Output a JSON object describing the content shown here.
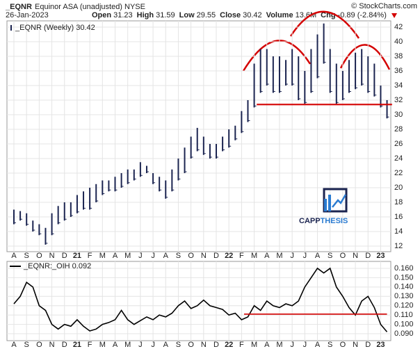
{
  "chart_data": [
    {
      "type": "ohlc",
      "title": "_EQNR",
      "subtitle": "Equinor ASA (unadjusted) NYSE",
      "date": "26-Jan-2023",
      "quote": [
        {
          "label": "Open",
          "text": "31.23"
        },
        {
          "label": "High",
          "text": "31.59"
        },
        {
          "label": "Low",
          "text": "29.55"
        },
        {
          "label": "Close",
          "text": "30.42"
        },
        {
          "label": "Volume",
          "text": "13.6M"
        },
        {
          "label": "Chg",
          "text": "-0.89 (-2.84%)"
        }
      ],
      "credit": "© StockCharts.com",
      "logo": [
        "CAPP",
        "THESIS"
      ],
      "series": [
        {
          "name": "_EQNR (Weekly) 30.42",
          "color": "#1b2450",
          "low": [
            15,
            15.5,
            14.8,
            14,
            13.5,
            12.2,
            13.5,
            15,
            15.5,
            16,
            16.5,
            17,
            17,
            18,
            19,
            19.5,
            19.5,
            20,
            20.5,
            21,
            21.5,
            22,
            20.5,
            19.5,
            18.5,
            19.5,
            21,
            22,
            24,
            25,
            24.5,
            24,
            24,
            25,
            25.5,
            26.5,
            27.5,
            29,
            31,
            33,
            34,
            33,
            33,
            34,
            34,
            32,
            31.5,
            33,
            35,
            37,
            33,
            31.5,
            32,
            33,
            33.5,
            34,
            33,
            32.5,
            31,
            29.5
          ],
          "high": [
            17,
            16.8,
            16.5,
            15.5,
            15,
            14.5,
            16.5,
            17.5,
            18,
            18,
            19,
            19.5,
            20,
            20.5,
            21,
            21,
            21.5,
            22,
            22.5,
            22.5,
            23.5,
            23,
            22,
            21.5,
            21,
            22.5,
            24,
            25.5,
            27,
            28.2,
            27,
            26,
            26,
            27,
            28,
            28.5,
            30.5,
            32,
            37,
            39,
            39,
            38,
            38,
            37.5,
            39,
            38,
            36,
            39,
            41,
            42.5,
            39,
            37,
            36,
            37.5,
            38.5,
            39,
            38,
            37,
            34,
            32
          ]
        }
      ],
      "x": [
        0,
        0.5,
        1,
        1.5,
        2,
        2.5,
        3,
        3.5,
        4,
        4.5,
        5,
        5.5,
        6,
        6.5,
        7,
        7.5,
        8,
        8.5,
        9,
        9.5,
        10,
        10.5,
        11,
        11.5,
        12,
        12.5,
        13,
        13.5,
        14,
        14.5,
        15,
        15.5,
        16,
        16.5,
        17,
        17.5,
        18,
        18.5,
        19,
        19.5,
        20,
        20.5,
        21,
        21.5,
        22,
        22.5,
        23,
        23.5,
        24,
        24.5,
        25,
        25.5,
        26,
        26.5,
        27,
        27.5,
        28,
        28.5,
        29,
        29.5
      ],
      "xlim": [
        -0.55,
        29.8
      ],
      "xticks": [
        {
          "value": 0,
          "label": "A"
        },
        {
          "value": 1,
          "label": "S"
        },
        {
          "value": 2,
          "label": "O"
        },
        {
          "value": 3,
          "label": "N"
        },
        {
          "value": 4,
          "label": "D"
        },
        {
          "value": 5,
          "label": "21"
        },
        {
          "value": 6,
          "label": "F"
        },
        {
          "value": 7,
          "label": "M"
        },
        {
          "value": 8,
          "label": "A"
        },
        {
          "value": 9,
          "label": "M"
        },
        {
          "value": 10,
          "label": "J"
        },
        {
          "value": 11,
          "label": "J"
        },
        {
          "value": 12,
          "label": "A"
        },
        {
          "value": 13,
          "label": "S"
        },
        {
          "value": 14,
          "label": "O"
        },
        {
          "value": 15,
          "label": "N"
        },
        {
          "value": 16,
          "label": "D"
        },
        {
          "value": 17,
          "label": "22"
        },
        {
          "value": 18,
          "label": "F"
        },
        {
          "value": 19,
          "label": "M"
        },
        {
          "value": 20,
          "label": "A"
        },
        {
          "value": 21,
          "label": "M"
        },
        {
          "value": 22,
          "label": "J"
        },
        {
          "value": 23,
          "label": "J"
        },
        {
          "value": 24,
          "label": "A"
        },
        {
          "value": 25,
          "label": "S"
        },
        {
          "value": 26,
          "label": "O"
        },
        {
          "value": 27,
          "label": "N"
        },
        {
          "value": 28,
          "label": "D"
        },
        {
          "value": 29,
          "label": "23"
        }
      ],
      "ylim": [
        11.24,
        42.86
      ],
      "yticks": [
        12,
        14,
        16,
        18,
        20,
        22,
        24,
        26,
        28,
        30,
        32,
        34,
        36,
        38,
        40,
        42
      ],
      "grid": true,
      "hline": {
        "value": 31.4,
        "x": [
          19.2,
          29.9
        ],
        "color": "#d40000"
      }
    },
    {
      "type": "line",
      "series": [
        {
          "name": "_EQNR:_OIH 0.092",
          "color": "#000000",
          "values": [
            0.122,
            0.13,
            0.145,
            0.14,
            0.12,
            0.115,
            0.1,
            0.095,
            0.1,
            0.098,
            0.105,
            0.098,
            0.093,
            0.095,
            0.1,
            0.102,
            0.105,
            0.115,
            0.105,
            0.1,
            0.104,
            0.108,
            0.105,
            0.11,
            0.108,
            0.112,
            0.12,
            0.125,
            0.117,
            0.12,
            0.126,
            0.12,
            0.118,
            0.116,
            0.11,
            0.112,
            0.105,
            0.108,
            0.12,
            0.115,
            0.125,
            0.12,
            0.118,
            0.122,
            0.12,
            0.125,
            0.14,
            0.15,
            0.16,
            0.155,
            0.16,
            0.14,
            0.13,
            0.118,
            0.11,
            0.125,
            0.13,
            0.118,
            0.1,
            0.092
          ]
        }
      ],
      "x": [
        0,
        0.5,
        1,
        1.5,
        2,
        2.5,
        3,
        3.5,
        4,
        4.5,
        5,
        5.5,
        6,
        6.5,
        7,
        7.5,
        8,
        8.5,
        9,
        9.5,
        10,
        10.5,
        11,
        11.5,
        12,
        12.5,
        13,
        13.5,
        14,
        14.5,
        15,
        15.5,
        16,
        16.5,
        17,
        17.5,
        18,
        18.5,
        19,
        19.5,
        20,
        20.5,
        21,
        21.5,
        22,
        22.5,
        23,
        23.5,
        24,
        24.5,
        25,
        25.5,
        26,
        26.5,
        27,
        27.5,
        28,
        28.5,
        29,
        29.5
      ],
      "xlim": [
        -0.55,
        29.8
      ],
      "xticks": [
        {
          "value": 0,
          "label": "A"
        },
        {
          "value": 1,
          "label": "S"
        },
        {
          "value": 2,
          "label": "O"
        },
        {
          "value": 3,
          "label": "N"
        },
        {
          "value": 4,
          "label": "D"
        },
        {
          "value": 5,
          "label": "21"
        },
        {
          "value": 6,
          "label": "F"
        },
        {
          "value": 7,
          "label": "M"
        },
        {
          "value": 8,
          "label": "A"
        },
        {
          "value": 9,
          "label": "M"
        },
        {
          "value": 10,
          "label": "J"
        },
        {
          "value": 11,
          "label": "J"
        },
        {
          "value": 12,
          "label": "A"
        },
        {
          "value": 13,
          "label": "S"
        },
        {
          "value": 14,
          "label": "O"
        },
        {
          "value": 15,
          "label": "N"
        },
        {
          "value": 16,
          "label": "D"
        },
        {
          "value": 17,
          "label": "22"
        },
        {
          "value": 18,
          "label": "F"
        },
        {
          "value": 19,
          "label": "M"
        },
        {
          "value": 20,
          "label": "A"
        },
        {
          "value": 21,
          "label": "M"
        },
        {
          "value": 22,
          "label": "J"
        },
        {
          "value": 23,
          "label": "J"
        },
        {
          "value": 24,
          "label": "A"
        },
        {
          "value": 25,
          "label": "S"
        },
        {
          "value": 26,
          "label": "O"
        },
        {
          "value": 27,
          "label": "N"
        },
        {
          "value": 28,
          "label": "D"
        },
        {
          "value": 29,
          "label": "23"
        }
      ],
      "ylim": [
        0.0826,
        0.1674
      ],
      "yticks": [
        {
          "value": 0.09,
          "label": "0.090"
        },
        {
          "value": 0.1,
          "label": "0.100"
        },
        {
          "value": 0.11,
          "label": "0.110"
        },
        {
          "value": 0.12,
          "label": "0.120"
        },
        {
          "value": 0.13,
          "label": "0.130"
        },
        {
          "value": 0.14,
          "label": "0.140"
        },
        {
          "value": 0.15,
          "label": "0.150"
        },
        {
          "value": 0.16,
          "label": "0.160"
        }
      ],
      "grid": true,
      "hline": {
        "value": 0.111,
        "x": [
          18.2,
          29.5
        ],
        "color": "#d40000"
      }
    }
  ]
}
